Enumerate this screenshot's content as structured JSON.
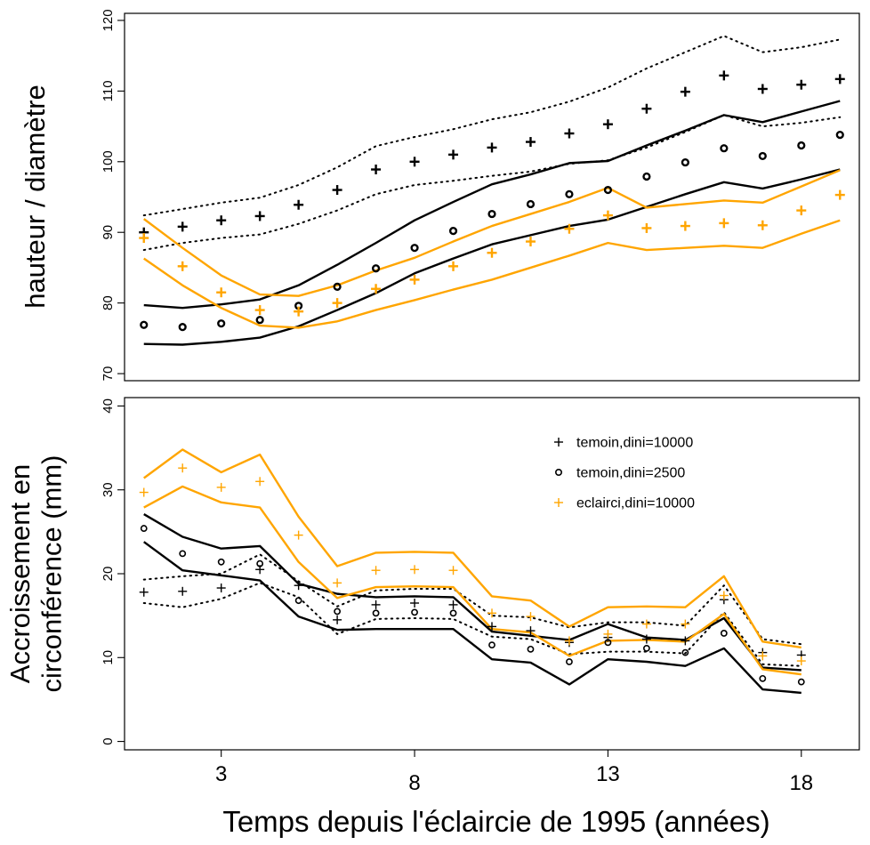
{
  "chart_data": [
    {
      "type": "line",
      "ylabel": "hauteur / diamètre",
      "xlim": [
        0.5,
        19.5
      ],
      "ylim": [
        69,
        121
      ],
      "yticks": [
        70,
        80,
        90,
        100,
        110,
        120
      ],
      "ytick_labels": [
        "70",
        "80",
        "90",
        "100",
        "110",
        "120"
      ],
      "x": [
        1,
        2,
        3,
        4,
        5,
        6,
        7,
        8,
        9,
        10,
        11,
        12,
        13,
        14,
        15,
        16,
        17,
        18,
        19
      ],
      "series": [
        {
          "name": "temoin,dini=10000",
          "style": "points",
          "marker": "+",
          "color": "#000000",
          "values": [
            90.0,
            90.8,
            91.7,
            92.3,
            93.9,
            96.0,
            98.9,
            100.0,
            101.0,
            102.0,
            102.8,
            104.0,
            105.3,
            107.5,
            109.9,
            112.2,
            110.3,
            110.9,
            111.7
          ]
        },
        {
          "name": "temoin,dini=2500",
          "style": "points",
          "marker": "o",
          "color": "#000000",
          "values": [
            76.9,
            76.6,
            77.1,
            77.6,
            79.6,
            82.3,
            84.9,
            87.8,
            90.2,
            92.6,
            94.0,
            95.4,
            96.0,
            97.9,
            99.9,
            101.9,
            100.8,
            102.3,
            103.8
          ]
        },
        {
          "name": "eclairci,dini=10000",
          "style": "points",
          "marker": "+",
          "color": "#FFA500",
          "values": [
            89.2,
            85.2,
            81.5,
            79.0,
            78.8,
            80.0,
            82.0,
            83.3,
            85.2,
            87.1,
            88.7,
            90.5,
            92.4,
            90.6,
            90.9,
            91.3,
            91.0,
            93.1,
            95.3
          ]
        },
        {
          "style": "line",
          "dash": "dotted",
          "color": "#000000",
          "values": [
            92.4,
            93.3,
            94.2,
            94.9,
            96.7,
            99.2,
            102.2,
            103.5,
            104.6,
            106.0,
            107.0,
            108.5,
            110.5,
            113.2,
            115.5,
            117.8,
            115.5,
            116.2,
            117.3
          ]
        },
        {
          "style": "line",
          "dash": "dotted",
          "color": "#000000",
          "values": [
            87.5,
            88.5,
            89.2,
            89.7,
            91.2,
            93.1,
            95.4,
            96.7,
            97.3,
            98.0,
            98.6,
            99.7,
            100.2,
            102.0,
            104.2,
            106.6,
            105.0,
            105.5,
            106.3
          ]
        },
        {
          "style": "line",
          "dash": "solid",
          "color": "#000000",
          "values": [
            79.7,
            79.3,
            79.8,
            80.5,
            82.5,
            85.4,
            88.5,
            91.7,
            94.3,
            96.8,
            98.2,
            99.8,
            100.1,
            102.3,
            104.4,
            106.6,
            105.6,
            107.1,
            108.6
          ]
        },
        {
          "style": "line",
          "dash": "solid",
          "color": "#000000",
          "values": [
            74.2,
            74.1,
            74.5,
            75.1,
            76.7,
            79.0,
            81.4,
            84.2,
            86.3,
            88.3,
            89.6,
            90.9,
            91.8,
            93.6,
            95.4,
            97.1,
            96.2,
            97.5,
            98.9
          ]
        },
        {
          "style": "line",
          "dash": "solid",
          "color": "#FFA500",
          "values": [
            91.9,
            87.8,
            83.9,
            81.2,
            81.0,
            82.5,
            84.6,
            86.4,
            88.7,
            90.9,
            92.6,
            94.3,
            96.3,
            93.5,
            94.0,
            94.5,
            94.2,
            96.5,
            98.8
          ]
        },
        {
          "style": "line",
          "dash": "solid",
          "color": "#FFA500",
          "values": [
            86.3,
            82.5,
            79.3,
            76.8,
            76.5,
            77.4,
            79.0,
            80.4,
            81.9,
            83.3,
            85.0,
            86.7,
            88.5,
            87.5,
            87.8,
            88.1,
            87.8,
            89.8,
            91.7
          ]
        }
      ]
    },
    {
      "type": "line",
      "ylabel": "Accroissement en circonférence (mm)",
      "xlabel": "Temps depuis l'éclaircie de 1995 (années)",
      "xlim": [
        0.5,
        19.5
      ],
      "ylim": [
        -1,
        41
      ],
      "xticks": [
        3,
        8,
        13,
        18
      ],
      "xtick_labels": [
        "3",
        "8",
        "13",
        "18"
      ],
      "yticks": [
        0,
        10,
        20,
        30,
        40
      ],
      "ytick_labels": [
        "0",
        "10",
        "20",
        "30",
        "40"
      ],
      "legend": {
        "placement": "top-right",
        "entries": [
          {
            "label": "temoin,dini=10000",
            "marker": "+",
            "color": "#000000"
          },
          {
            "label": "temoin,dini=2500",
            "marker": "o",
            "color": "#000000"
          },
          {
            "label": "eclairci,dini=10000",
            "marker": "+",
            "color": "#FFA500"
          }
        ]
      },
      "x": [
        1,
        2,
        3,
        4,
        5,
        6,
        7,
        8,
        9,
        10,
        11,
        12,
        13,
        14,
        15,
        16,
        17,
        18
      ],
      "series": [
        {
          "name": "temoin,dini=10000",
          "style": "points",
          "marker": "+",
          "color": "#000000",
          "values": [
            17.8,
            17.9,
            18.3,
            20.5,
            18.6,
            14.5,
            16.3,
            16.5,
            16.3,
            13.7,
            13.2,
            11.8,
            12.4,
            12.2,
            12.0,
            16.9,
            10.6,
            10.3
          ]
        },
        {
          "name": "temoin,dini=2500",
          "style": "points",
          "marker": "o",
          "color": "#000000",
          "values": [
            25.4,
            22.4,
            21.4,
            21.2,
            16.8,
            15.5,
            15.3,
            15.4,
            15.3,
            11.5,
            11.0,
            9.5,
            11.8,
            11.1,
            10.6,
            12.9,
            7.5,
            7.1
          ]
        },
        {
          "name": "eclairci,dini=10000",
          "style": "points",
          "marker": "+",
          "color": "#FFA500",
          "values": [
            29.7,
            32.6,
            30.3,
            31.0,
            24.6,
            18.9,
            20.4,
            20.5,
            20.4,
            15.3,
            14.9,
            12.0,
            12.8,
            14.0,
            14.0,
            17.4,
            10.2,
            9.6
          ]
        },
        {
          "style": "line",
          "dash": "dotted",
          "color": "#000000",
          "values": [
            19.3,
            19.7,
            20.0,
            22.3,
            19.1,
            16.1,
            18.0,
            18.2,
            18.2,
            15.0,
            14.8,
            13.6,
            14.2,
            14.2,
            13.8,
            18.6,
            12.2,
            11.6
          ]
        },
        {
          "style": "line",
          "dash": "dotted",
          "color": "#000000",
          "values": [
            16.5,
            16.0,
            17.0,
            18.9,
            17.2,
            12.8,
            14.6,
            14.7,
            14.6,
            12.5,
            12.2,
            10.4,
            10.7,
            10.7,
            10.5,
            15.4,
            9.2,
            9.0
          ]
        },
        {
          "style": "line",
          "dash": "solid",
          "color": "#000000",
          "values": [
            27.1,
            24.4,
            23.0,
            23.3,
            18.8,
            17.6,
            17.2,
            17.3,
            17.2,
            13.1,
            12.6,
            12.1,
            14.0,
            12.4,
            12.1,
            14.7,
            8.8,
            8.5
          ]
        },
        {
          "style": "line",
          "dash": "solid",
          "color": "#000000",
          "values": [
            23.8,
            20.4,
            19.8,
            19.2,
            14.9,
            13.3,
            13.4,
            13.4,
            13.4,
            9.8,
            9.4,
            6.8,
            9.8,
            9.5,
            9.0,
            11.1,
            6.2,
            5.8
          ]
        },
        {
          "style": "line",
          "dash": "solid",
          "color": "#FFA500",
          "values": [
            31.4,
            34.8,
            32.1,
            34.2,
            26.8,
            20.9,
            22.5,
            22.6,
            22.5,
            17.3,
            16.8,
            13.7,
            16.0,
            16.1,
            16.0,
            19.7,
            11.9,
            11.2
          ]
        },
        {
          "style": "line",
          "dash": "solid",
          "color": "#FFA500",
          "values": [
            27.9,
            30.4,
            28.5,
            27.9,
            21.4,
            17.1,
            18.4,
            18.5,
            18.4,
            13.4,
            13.0,
            10.2,
            12.0,
            12.1,
            11.9,
            15.2,
            8.6,
            8.0
          ]
        }
      ]
    }
  ]
}
